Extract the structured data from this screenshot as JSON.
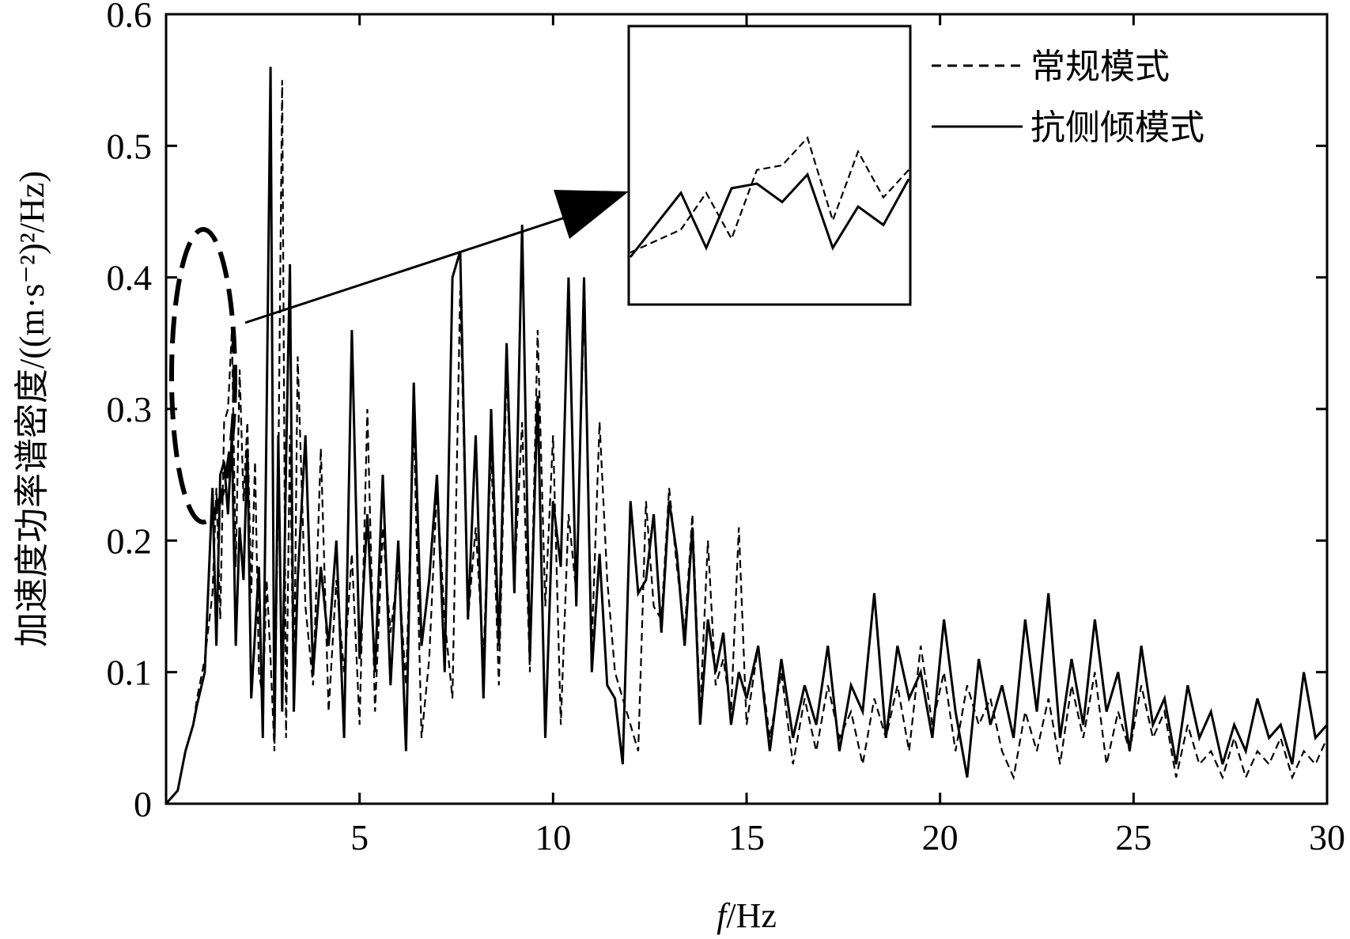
{
  "chart_data": {
    "type": "line",
    "xlabel_italic": "f",
    "xlabel_rest": "/Hz",
    "ylabel": "加速度功率谱密度/((m·s⁻²)²/Hz)",
    "xlim": [
      0,
      30
    ],
    "ylim": [
      0,
      0.6
    ],
    "xticks": [
      5,
      10,
      15,
      20,
      25,
      30
    ],
    "xtick_labels": [
      "5",
      "10",
      "15",
      "20",
      "25",
      "30"
    ],
    "yticks": [
      0,
      0.1,
      0.2,
      0.3,
      0.4,
      0.5,
      0.6
    ],
    "ytick_labels": [
      "0",
      "0.1",
      "0.2",
      "0.3",
      "0.4",
      "0.5",
      "0.6"
    ],
    "legend_position": "top-right",
    "inset": "zoom of the peaks near f = 1–2 Hz (dashed ellipse, arrow to inset box)",
    "series": [
      {
        "name": "常规模式",
        "style": "dashed",
        "color": "#000000",
        "x": [
          0.0,
          0.3,
          0.5,
          0.7,
          0.8,
          1.0,
          1.2,
          1.3,
          1.4,
          1.5,
          1.6,
          1.7,
          1.8,
          1.9,
          2.0,
          2.1,
          2.2,
          2.3,
          2.4,
          2.5,
          2.6,
          2.7,
          2.8,
          2.9,
          3.0,
          3.1,
          3.2,
          3.3,
          3.4,
          3.6,
          3.8,
          4.0,
          4.2,
          4.4,
          4.6,
          4.8,
          5.0,
          5.2,
          5.4,
          5.6,
          5.8,
          6.0,
          6.2,
          6.4,
          6.6,
          6.8,
          7.0,
          7.2,
          7.4,
          7.6,
          7.8,
          8.0,
          8.2,
          8.4,
          8.6,
          8.8,
          9.0,
          9.2,
          9.4,
          9.6,
          9.8,
          10.0,
          10.2,
          10.4,
          10.6,
          10.8,
          11.0,
          11.2,
          11.4,
          11.6,
          11.8,
          12.0,
          12.2,
          12.4,
          12.6,
          12.8,
          13.0,
          13.2,
          13.4,
          13.6,
          13.8,
          14.0,
          14.2,
          14.4,
          14.6,
          14.8,
          15.0,
          15.3,
          15.6,
          15.9,
          16.2,
          16.5,
          16.8,
          17.1,
          17.4,
          17.7,
          18.0,
          18.3,
          18.6,
          18.9,
          19.2,
          19.5,
          19.8,
          20.1,
          20.4,
          20.7,
          21.0,
          21.3,
          21.6,
          21.9,
          22.2,
          22.5,
          22.8,
          23.1,
          23.4,
          23.7,
          24.0,
          24.3,
          24.6,
          24.9,
          25.2,
          25.5,
          25.8,
          26.1,
          26.4,
          26.7,
          27.0,
          27.3,
          27.6,
          27.9,
          28.2,
          28.5,
          28.8,
          29.1,
          29.4,
          29.7,
          30.0
        ],
        "y": [
          0.0,
          0.01,
          0.04,
          0.06,
          0.08,
          0.11,
          0.16,
          0.24,
          0.14,
          0.29,
          0.3,
          0.36,
          0.18,
          0.33,
          0.23,
          0.29,
          0.16,
          0.26,
          0.1,
          0.08,
          0.17,
          0.11,
          0.04,
          0.25,
          0.55,
          0.05,
          0.28,
          0.07,
          0.34,
          0.15,
          0.09,
          0.27,
          0.07,
          0.17,
          0.1,
          0.19,
          0.06,
          0.3,
          0.07,
          0.21,
          0.13,
          0.18,
          0.09,
          0.29,
          0.05,
          0.11,
          0.24,
          0.14,
          0.08,
          0.39,
          0.14,
          0.21,
          0.11,
          0.27,
          0.09,
          0.33,
          0.17,
          0.29,
          0.1,
          0.36,
          0.15,
          0.28,
          0.06,
          0.22,
          0.16,
          0.38,
          0.12,
          0.29,
          0.17,
          0.1,
          0.08,
          0.06,
          0.04,
          0.23,
          0.15,
          0.14,
          0.24,
          0.18,
          0.13,
          0.22,
          0.07,
          0.2,
          0.09,
          0.11,
          0.07,
          0.21,
          0.06,
          0.12,
          0.05,
          0.1,
          0.03,
          0.08,
          0.04,
          0.09,
          0.05,
          0.07,
          0.03,
          0.08,
          0.05,
          0.09,
          0.04,
          0.12,
          0.06,
          0.1,
          0.04,
          0.09,
          0.06,
          0.08,
          0.04,
          0.02,
          0.07,
          0.04,
          0.08,
          0.03,
          0.09,
          0.05,
          0.1,
          0.03,
          0.07,
          0.04,
          0.09,
          0.05,
          0.07,
          0.02,
          0.06,
          0.03,
          0.04,
          0.02,
          0.05,
          0.02,
          0.04,
          0.03,
          0.05,
          0.02,
          0.04,
          0.03,
          0.05
        ]
      },
      {
        "name": "抗侧倾模式",
        "style": "solid",
        "color": "#000000",
        "x": [
          0.0,
          0.3,
          0.5,
          0.7,
          0.8,
          1.0,
          1.2,
          1.3,
          1.4,
          1.5,
          1.6,
          1.7,
          1.8,
          1.9,
          2.0,
          2.1,
          2.2,
          2.3,
          2.4,
          2.5,
          2.6,
          2.7,
          2.8,
          2.9,
          3.0,
          3.1,
          3.2,
          3.3,
          3.4,
          3.6,
          3.8,
          4.0,
          4.2,
          4.4,
          4.6,
          4.8,
          5.0,
          5.2,
          5.4,
          5.6,
          5.8,
          6.0,
          6.2,
          6.4,
          6.6,
          6.8,
          7.0,
          7.2,
          7.4,
          7.6,
          7.8,
          8.0,
          8.2,
          8.4,
          8.6,
          8.8,
          9.0,
          9.2,
          9.4,
          9.6,
          9.8,
          10.0,
          10.2,
          10.4,
          10.6,
          10.8,
          11.0,
          11.2,
          11.4,
          11.6,
          11.8,
          12.0,
          12.2,
          12.4,
          12.6,
          12.8,
          13.0,
          13.2,
          13.4,
          13.6,
          13.8,
          14.0,
          14.2,
          14.4,
          14.6,
          14.8,
          15.0,
          15.3,
          15.6,
          15.9,
          16.2,
          16.5,
          16.8,
          17.1,
          17.4,
          17.7,
          18.0,
          18.3,
          18.6,
          18.9,
          19.2,
          19.5,
          19.8,
          20.1,
          20.4,
          20.7,
          21.0,
          21.3,
          21.6,
          21.9,
          22.2,
          22.5,
          22.8,
          23.1,
          23.4,
          23.7,
          24.0,
          24.3,
          24.6,
          24.9,
          25.2,
          25.5,
          25.8,
          26.1,
          26.4,
          26.7,
          27.0,
          27.3,
          27.6,
          27.9,
          28.2,
          28.5,
          28.8,
          29.1,
          29.4,
          29.7,
          30.0
        ],
        "y": [
          0.0,
          0.01,
          0.04,
          0.06,
          0.075,
          0.1,
          0.24,
          0.12,
          0.25,
          0.26,
          0.22,
          0.28,
          0.12,
          0.21,
          0.17,
          0.27,
          0.08,
          0.13,
          0.18,
          0.05,
          0.3,
          0.56,
          0.05,
          0.28,
          0.07,
          0.26,
          0.41,
          0.07,
          0.17,
          0.28,
          0.1,
          0.18,
          0.12,
          0.2,
          0.05,
          0.36,
          0.11,
          0.22,
          0.1,
          0.25,
          0.09,
          0.2,
          0.04,
          0.32,
          0.12,
          0.17,
          0.25,
          0.1,
          0.4,
          0.42,
          0.14,
          0.28,
          0.08,
          0.3,
          0.12,
          0.35,
          0.16,
          0.44,
          0.11,
          0.31,
          0.05,
          0.23,
          0.18,
          0.4,
          0.15,
          0.4,
          0.1,
          0.19,
          0.09,
          0.08,
          0.03,
          0.23,
          0.16,
          0.17,
          0.22,
          0.13,
          0.23,
          0.19,
          0.12,
          0.21,
          0.06,
          0.14,
          0.1,
          0.13,
          0.06,
          0.1,
          0.08,
          0.12,
          0.04,
          0.11,
          0.05,
          0.09,
          0.06,
          0.12,
          0.04,
          0.09,
          0.07,
          0.16,
          0.05,
          0.12,
          0.08,
          0.1,
          0.05,
          0.14,
          0.07,
          0.02,
          0.11,
          0.06,
          0.09,
          0.05,
          0.14,
          0.07,
          0.16,
          0.05,
          0.11,
          0.06,
          0.14,
          0.07,
          0.1,
          0.04,
          0.12,
          0.06,
          0.08,
          0.03,
          0.09,
          0.05,
          0.07,
          0.03,
          0.06,
          0.04,
          0.08,
          0.05,
          0.06,
          0.03,
          0.1,
          0.05,
          0.06
        ]
      }
    ]
  }
}
